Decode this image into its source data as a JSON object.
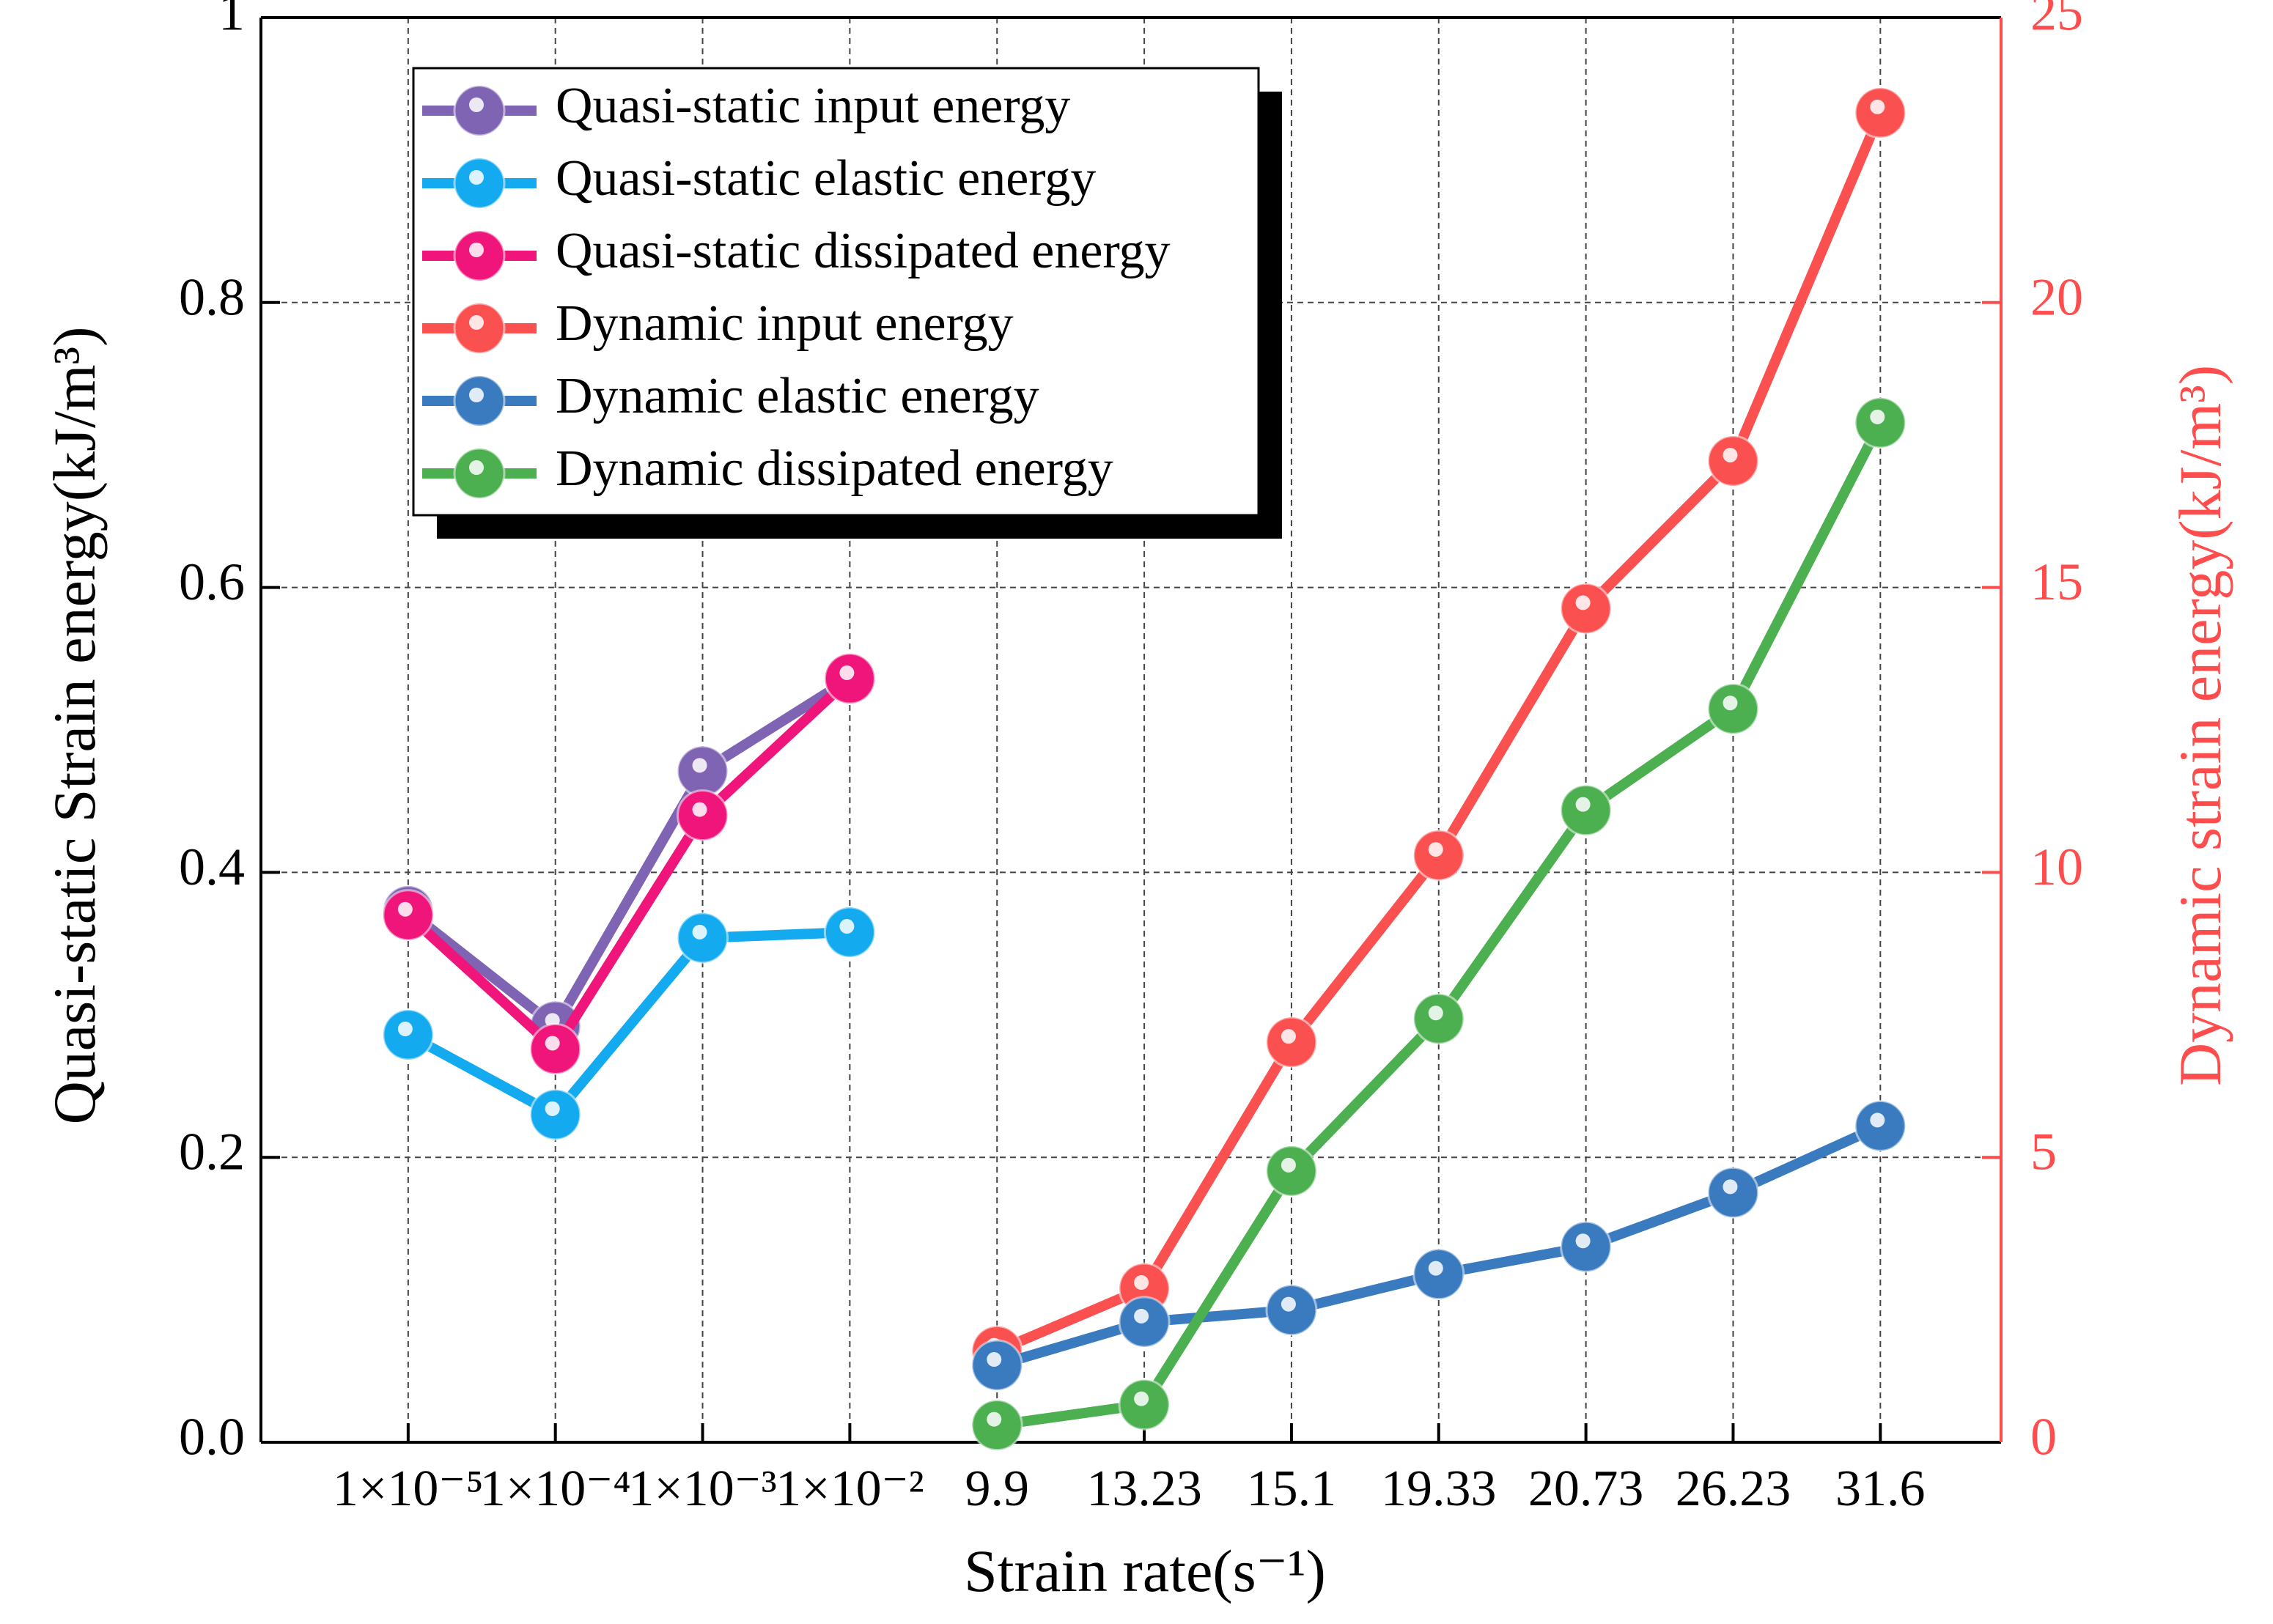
{
  "chart_data": {
    "type": "line",
    "xlabel": "Strain rate(s⁻¹)",
    "ylabel": "Quasi-static Strain energy(kJ/m³)",
    "y2label": "Dynamic strain energy(kJ/m³)",
    "categories": [
      "1×10⁻⁵",
      "1×10⁻⁴",
      "1×10⁻³",
      "1×10⁻²",
      "9.9",
      "13.23",
      "15.1",
      "19.33",
      "20.73",
      "26.23",
      "31.6"
    ],
    "ylim": [
      0,
      1
    ],
    "yticks": [
      {
        "value": 0,
        "label": "0.0"
      },
      0.2,
      0.4,
      0.6,
      0.8,
      1
    ],
    "y2lim": [
      0,
      25
    ],
    "y2ticks": [
      0,
      5,
      10,
      15,
      20,
      25
    ],
    "y2color": "#ff4d4d",
    "grid": true,
    "legend": "upper left",
    "series": [
      {
        "name": "Quasi-static input energy",
        "color": "#8064b4",
        "values": [
          0.373,
          0.292,
          0.471,
          0.536,
          null,
          null,
          null,
          null,
          null,
          null,
          null
        ]
      },
      {
        "name": "Quasi-static elastic energy",
        "color": "#14aaf0",
        "values": [
          0.286,
          0.23,
          0.354,
          0.358,
          null,
          null,
          null,
          null,
          null,
          null,
          null
        ]
      },
      {
        "name": "Quasi-static dissipated energy",
        "color": "#f0157a",
        "values": [
          0.37,
          0.276,
          0.44,
          0.536,
          null,
          null,
          null,
          null,
          null,
          null,
          null
        ]
      },
      {
        "name": "Dynamic input energy",
        "color": "#fa5050",
        "axis": "y2",
        "values": [
          null,
          null,
          null,
          null,
          1.6,
          2.7,
          7.02,
          10.3,
          14.63,
          17.22,
          23.33
        ]
      },
      {
        "name": "Dynamic elastic energy",
        "color": "#3a7bbf",
        "axis": "y2",
        "values": [
          null,
          null,
          null,
          null,
          1.35,
          2.11,
          2.32,
          2.95,
          3.43,
          4.38,
          5.55
        ]
      },
      {
        "name": "Dynamic dissipated energy",
        "color": "#4caf50",
        "axis": "y2",
        "values": [
          null,
          null,
          null,
          null,
          0.3,
          0.66,
          4.76,
          7.43,
          11.09,
          12.87,
          17.89
        ]
      }
    ]
  }
}
